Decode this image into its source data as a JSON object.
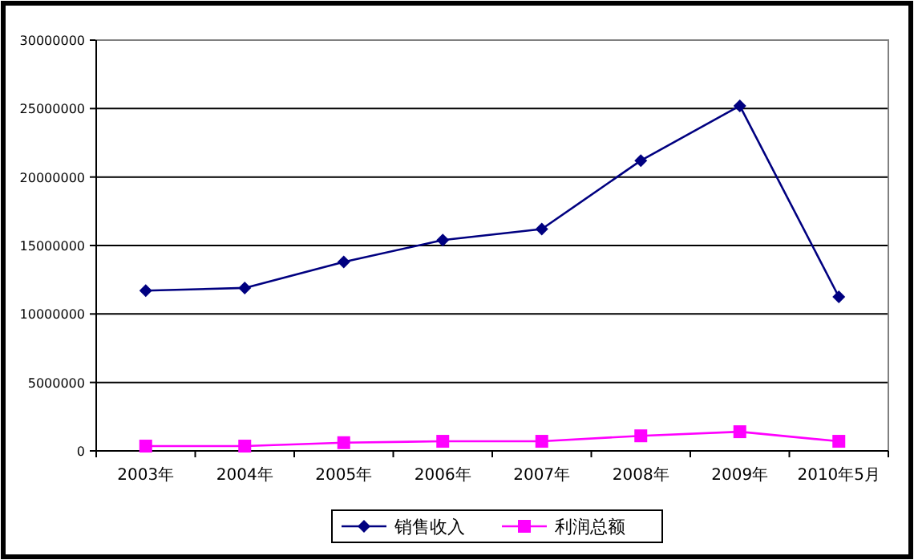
{
  "chart_data": {
    "type": "line",
    "categories": [
      "2003年",
      "2004年",
      "2005年",
      "2006年",
      "2007年",
      "2008年",
      "2009年",
      "2010年5月"
    ],
    "series": [
      {
        "name": "销售收入",
        "color": "#000080",
        "marker": "diamond",
        "values": [
          11700000,
          11900000,
          13800000,
          15400000,
          16200000,
          21200000,
          25200000,
          11250000
        ]
      },
      {
        "name": "利润总额",
        "color": "#ff00ff",
        "marker": "square",
        "values": [
          350000,
          350000,
          600000,
          700000,
          700000,
          1100000,
          1400000,
          700000
        ]
      }
    ],
    "ylim": [
      0,
      30000000
    ],
    "yticks": [
      0,
      5000000,
      10000000,
      15000000,
      20000000,
      25000000,
      30000000
    ],
    "grid": "y",
    "legend": "bottom"
  }
}
